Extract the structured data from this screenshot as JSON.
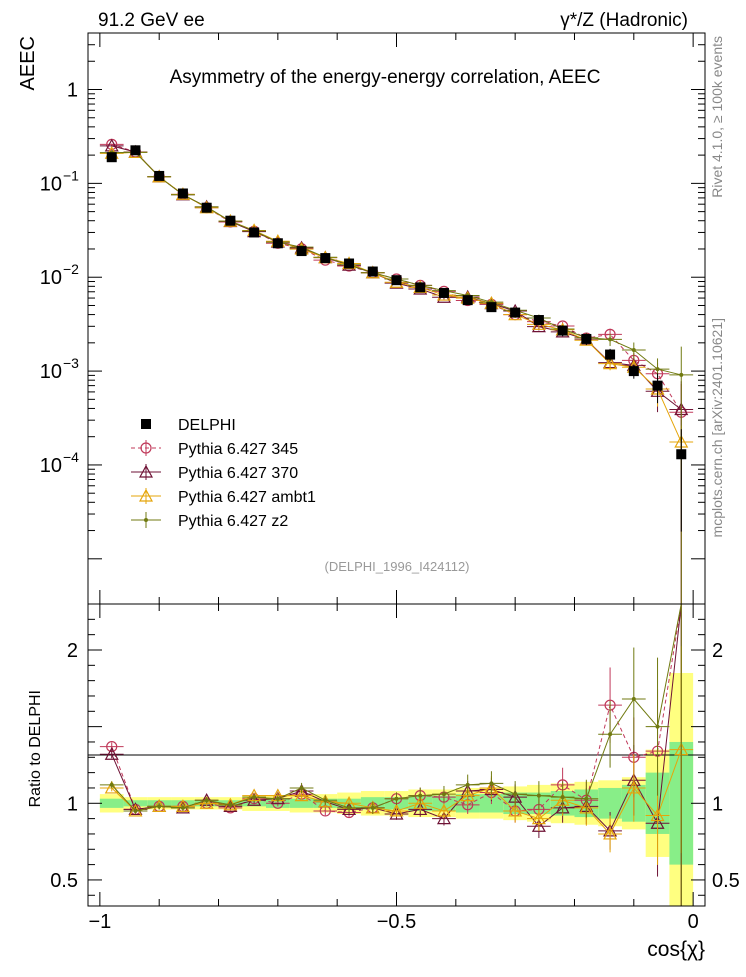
{
  "header": {
    "left": "91.2 GeV ee",
    "right": "γ*/Z (Hadronic)",
    "side_top": "Rivet 4.1.0, ≥ 100k events",
    "side_bottom": "mcplots.cern.ch [arXiv:2401.10621]"
  },
  "chart_data": {
    "type": "line",
    "title": "Asymmetry of the energy-energy correlation, AEEC",
    "watermark": "(DELPHI_1996_I424112)",
    "xlabel": "cos{χ}",
    "ylabel": "AEEC",
    "ratio_ylabel": "Ratio to DELPHI",
    "xlim": [
      -1.02,
      0.02
    ],
    "ylim": [
      3.3e-06,
      4.0
    ],
    "yscale": "log",
    "ratio_ylim": [
      0.33,
      2.3
    ],
    "x_ticks": [
      {
        "v": -1,
        "label": "−1"
      },
      {
        "v": -0.5,
        "label": "−0.5"
      },
      {
        "v": 0,
        "label": "0"
      }
    ],
    "y_ticks": [
      {
        "v": 1,
        "label": "1"
      },
      {
        "v": 0.1,
        "label": "10",
        "exp": "−1"
      },
      {
        "v": 0.01,
        "label": "10",
        "exp": "−2"
      },
      {
        "v": 0.001,
        "label": "10",
        "exp": "−3"
      },
      {
        "v": 0.0001,
        "label": "10",
        "exp": "−4"
      }
    ],
    "ratio_ticks": [
      {
        "v": 2,
        "label": "2"
      },
      {
        "v": 1,
        "label": "1"
      },
      {
        "v": 0.5,
        "label": "0.5"
      }
    ],
    "x": [
      -0.98,
      -0.94,
      -0.9,
      -0.86,
      -0.82,
      -0.78,
      -0.74,
      -0.7,
      -0.66,
      -0.62,
      -0.58,
      -0.54,
      -0.5,
      -0.46,
      -0.42,
      -0.38,
      -0.34,
      -0.3,
      -0.26,
      -0.22,
      -0.18,
      -0.14,
      -0.1,
      -0.06,
      -0.02
    ],
    "data": {
      "name": "DELPHI",
      "values": [
        0.19,
        0.225,
        0.12,
        0.078,
        0.055,
        0.04,
        0.03,
        0.023,
        0.019,
        0.016,
        0.014,
        0.0115,
        0.0093,
        0.0078,
        0.0068,
        0.0057,
        0.0048,
        0.0042,
        0.0035,
        0.0027,
        0.0022,
        0.0015,
        0.001,
        0.0007,
        0.00013
      ],
      "band_inner": [
        0.03,
        0.02,
        0.02,
        0.02,
        0.02,
        0.02,
        0.02,
        0.03,
        0.03,
        0.03,
        0.03,
        0.04,
        0.04,
        0.05,
        0.05,
        0.06,
        0.06,
        0.07,
        0.07,
        0.08,
        0.09,
        0.1,
        0.12,
        0.2,
        0.4
      ],
      "band_outer": [
        0.06,
        0.04,
        0.04,
        0.04,
        0.04,
        0.04,
        0.05,
        0.05,
        0.06,
        0.06,
        0.07,
        0.08,
        0.08,
        0.09,
        0.09,
        0.1,
        0.1,
        0.11,
        0.12,
        0.13,
        0.14,
        0.15,
        0.17,
        0.35,
        0.85
      ]
    },
    "series": [
      {
        "name": "Pythia 6.427 345",
        "color": "#c0395a",
        "marker": "circle",
        "dash": "4,3",
        "ratio": [
          1.37,
          0.96,
          0.98,
          0.98,
          1.0,
          0.97,
          1.03,
          1.0,
          1.06,
          0.95,
          0.94,
          0.97,
          1.03,
          1.05,
          1.04,
          0.99,
          1.07,
          0.95,
          0.96,
          1.12,
          1.02,
          1.64,
          1.3,
          1.34,
          2.8
        ],
        "err": [
          0.02,
          0.02,
          0.02,
          0.02,
          0.02,
          0.02,
          0.02,
          0.02,
          0.03,
          0.03,
          0.03,
          0.04,
          0.04,
          0.05,
          0.05,
          0.06,
          0.07,
          0.08,
          0.09,
          0.1,
          0.12,
          0.15,
          0.2,
          0.3,
          1.0
        ]
      },
      {
        "name": "Pythia 6.427 370",
        "color": "#6e1235",
        "marker": "triangle",
        "dash": "",
        "ratio": [
          1.32,
          0.96,
          0.98,
          0.97,
          1.02,
          0.98,
          1.02,
          1.03,
          1.08,
          1.01,
          0.96,
          0.97,
          0.93,
          0.96,
          0.9,
          1.08,
          1.09,
          1.04,
          0.85,
          0.97,
          0.98,
          0.82,
          1.15,
          0.87,
          3.0
        ],
        "err": [
          0.02,
          0.02,
          0.02,
          0.02,
          0.02,
          0.02,
          0.02,
          0.02,
          0.03,
          0.03,
          0.03,
          0.04,
          0.04,
          0.05,
          0.05,
          0.06,
          0.07,
          0.08,
          0.09,
          0.1,
          0.12,
          0.15,
          0.2,
          0.4,
          1.0
        ]
      },
      {
        "name": "Pythia 6.427 ambt1",
        "color": "#e5a50a",
        "marker": "triangle",
        "dash": "",
        "ratio": [
          1.1,
          0.95,
          0.98,
          0.98,
          1.0,
          0.99,
          1.05,
          1.05,
          1.05,
          1.01,
          1.0,
          0.97,
          0.95,
          1.0,
          0.95,
          1.05,
          1.1,
          0.95,
          0.9,
          1.02,
          0.97,
          0.8,
          1.1,
          0.92,
          1.35
        ],
        "err": [
          0.02,
          0.02,
          0.02,
          0.02,
          0.02,
          0.02,
          0.02,
          0.02,
          0.03,
          0.03,
          0.03,
          0.04,
          0.04,
          0.05,
          0.05,
          0.06,
          0.07,
          0.08,
          0.09,
          0.1,
          0.12,
          0.15,
          0.2,
          0.35,
          0.5
        ]
      },
      {
        "name": "Pythia 6.427 z2",
        "color": "#707a10",
        "marker": "dot",
        "dash": "",
        "ratio": [
          1.12,
          0.95,
          0.98,
          0.97,
          1.02,
          0.99,
          1.04,
          1.03,
          1.1,
          1.02,
          0.97,
          0.97,
          1.03,
          1.05,
          1.06,
          1.12,
          1.13,
          1.06,
          1.05,
          1.04,
          1.03,
          1.45,
          1.68,
          1.5,
          7.0
        ],
        "err": [
          0.02,
          0.02,
          0.02,
          0.02,
          0.02,
          0.02,
          0.02,
          0.02,
          0.03,
          0.03,
          0.03,
          0.04,
          0.04,
          0.05,
          0.05,
          0.06,
          0.07,
          0.08,
          0.09,
          0.1,
          0.12,
          0.15,
          0.2,
          0.3,
          1.0
        ]
      }
    ]
  }
}
